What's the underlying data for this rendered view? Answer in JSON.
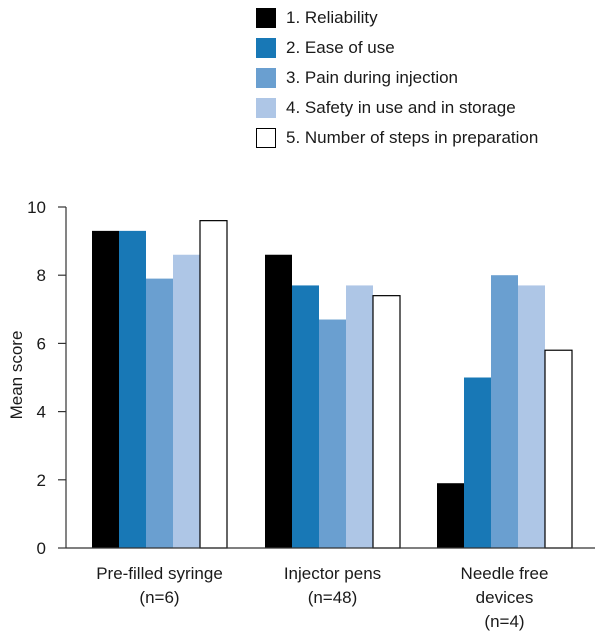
{
  "chart_data": {
    "type": "bar",
    "title": "",
    "xlabel": "",
    "ylabel": "Mean score",
    "ylim": [
      0,
      10
    ],
    "yticks": [
      0,
      2,
      4,
      6,
      8,
      10
    ],
    "grid": false,
    "legend_position": "top",
    "categories": [
      {
        "line1": "Pre-filled syringe",
        "line2": "(n=6)",
        "line3": ""
      },
      {
        "line1": "Injector pens",
        "line2": "(n=48)",
        "line3": ""
      },
      {
        "line1": "Needle free",
        "line2": "devices",
        "line3": "(n=4)"
      }
    ],
    "series": [
      {
        "name": "1. Reliability",
        "color": "#000000",
        "values": [
          9.3,
          8.6,
          1.9
        ]
      },
      {
        "name": "2. Ease of use",
        "color": "#1878b6",
        "values": [
          9.3,
          7.7,
          5.0
        ]
      },
      {
        "name": "3. Pain during injection",
        "color": "#6a9fd0",
        "values": [
          7.9,
          6.7,
          8.0
        ]
      },
      {
        "name": "4. Safety in use and in storage",
        "color": "#aec6e6",
        "values": [
          8.6,
          7.7,
          7.7
        ]
      },
      {
        "name": "5. Number of steps in preparation",
        "color": "#ffffff",
        "values": [
          9.6,
          7.4,
          5.8
        ]
      }
    ]
  }
}
